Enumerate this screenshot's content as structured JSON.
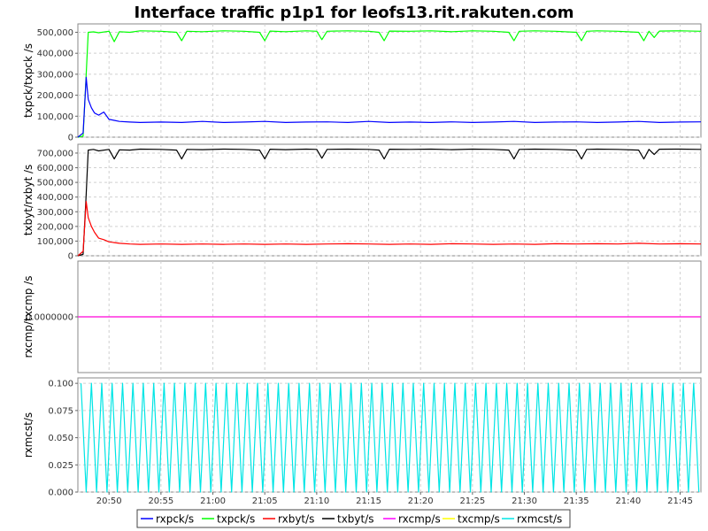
{
  "chart_data": {
    "type": "line",
    "title": "Interface traffic p1p1 for leofs13.rit.rakuten.com",
    "x_unit": "minutes since 20:47",
    "x_range": [
      0,
      60
    ],
    "x_ticks": [
      {
        "value": 3,
        "label": "20:50"
      },
      {
        "value": 8,
        "label": "20:55"
      },
      {
        "value": 13,
        "label": "21:00"
      },
      {
        "value": 18,
        "label": "21:05"
      },
      {
        "value": 23,
        "label": "21:10"
      },
      {
        "value": 28,
        "label": "21:15"
      },
      {
        "value": 33,
        "label": "21:20"
      },
      {
        "value": 38,
        "label": "21:25"
      },
      {
        "value": 43,
        "label": "21:30"
      },
      {
        "value": 48,
        "label": "21:35"
      },
      {
        "value": 53,
        "label": "21:40"
      },
      {
        "value": 58,
        "label": "21:45"
      }
    ],
    "panels": [
      {
        "ylabel": "txpck/txpck /s",
        "ylim": [
          0,
          540000
        ],
        "y_ticks": [
          {
            "value": 0,
            "label": "0"
          },
          {
            "value": 100000,
            "label": "100,000"
          },
          {
            "value": 200000,
            "label": "200,000"
          },
          {
            "value": 300000,
            "label": "300,000"
          },
          {
            "value": 400000,
            "label": "400,000"
          },
          {
            "value": 500000,
            "label": "500,000"
          }
        ],
        "series": [
          {
            "name": "txpck/s",
            "color": "#00ff00",
            "x": [
              0,
              0.5,
              0.8,
              1.0,
              1.5,
              2,
              3,
              3.5,
              4,
              5,
              6,
              8,
              9.5,
              10,
              10.5,
              12,
              14,
              16,
              17.5,
              18,
              18.5,
              20,
              22,
              23,
              23.5,
              24,
              26,
              28,
              29,
              29.5,
              30,
              32,
              34,
              36,
              38,
              40,
              41.5,
              42,
              42.5,
              44,
              46,
              48,
              48.5,
              49,
              50,
              52,
              54,
              54.5,
              55,
              55.5,
              56,
              58,
              60
            ],
            "values": [
              0,
              5000,
              300000,
              500000,
              502000,
              498000,
              505000,
              455000,
              503000,
              500000,
              507000,
              505000,
              500000,
              460000,
              505000,
              503000,
              507000,
              505000,
              500000,
              460000,
              506000,
              503000,
              507000,
              505000,
              465000,
              505000,
              507000,
              505000,
              500000,
              460000,
              506000,
              505000,
              507000,
              503000,
              507000,
              505000,
              500000,
              460000,
              505000,
              507000,
              505000,
              500000,
              460000,
              505000,
              507000,
              505000,
              500000,
              460000,
              505000,
              475000,
              506000,
              507000,
              505000
            ]
          },
          {
            "name": "rxpck/s",
            "color": "#0000ff",
            "x": [
              0,
              0.5,
              0.8,
              1.0,
              1.3,
              1.6,
              2,
              2.5,
              3,
              3.5,
              4,
              5,
              6,
              8,
              10,
              12,
              14,
              16,
              18,
              20,
              22,
              24,
              26,
              28,
              30,
              32,
              34,
              36,
              38,
              40,
              42,
              44,
              46,
              48,
              50,
              52,
              54,
              56,
              58,
              60
            ],
            "values": [
              0,
              20000,
              285000,
              180000,
              140000,
              115000,
              105000,
              120000,
              85000,
              80000,
              75000,
              72000,
              70000,
              72000,
              70000,
              75000,
              70000,
              72000,
              75000,
              70000,
              72000,
              73000,
              70000,
              75000,
              70000,
              72000,
              70000,
              73000,
              70000,
              72000,
              75000,
              70000,
              72000,
              73000,
              70000,
              72000,
              75000,
              70000,
              72000,
              73000
            ]
          }
        ]
      },
      {
        "ylabel": "txbyt/rxbyt /s",
        "ylim": [
          0,
          760000
        ],
        "y_ticks": [
          {
            "value": 0,
            "label": "0"
          },
          {
            "value": 100000,
            "label": "100,000"
          },
          {
            "value": 200000,
            "label": "200,000"
          },
          {
            "value": 300000,
            "label": "300,000"
          },
          {
            "value": 400000,
            "label": "400,000"
          },
          {
            "value": 500000,
            "label": "500,000"
          },
          {
            "value": 600000,
            "label": "600,000"
          },
          {
            "value": 700000,
            "label": "700,000"
          }
        ],
        "series": [
          {
            "name": "txbyt/s",
            "color": "#000000",
            "x": [
              0,
              0.5,
              0.8,
              1.0,
              1.5,
              2,
              3,
              3.5,
              4,
              5,
              6,
              8,
              9.5,
              10,
              10.5,
              12,
              14,
              16,
              17.5,
              18,
              18.5,
              20,
              22,
              23,
              23.5,
              24,
              26,
              28,
              29,
              29.5,
              30,
              32,
              34,
              36,
              38,
              40,
              41.5,
              42,
              42.5,
              44,
              46,
              48,
              48.5,
              49,
              50,
              52,
              54,
              54.5,
              55,
              55.5,
              56,
              58,
              60
            ],
            "values": [
              0,
              10000,
              420000,
              720000,
              725000,
              715000,
              725000,
              660000,
              722000,
              720000,
              727000,
              725000,
              720000,
              660000,
              725000,
              723000,
              727000,
              725000,
              720000,
              660000,
              726000,
              723000,
              727000,
              725000,
              665000,
              725000,
              727000,
              725000,
              720000,
              660000,
              726000,
              725000,
              727000,
              723000,
              727000,
              725000,
              720000,
              660000,
              725000,
              727000,
              725000,
              720000,
              660000,
              725000,
              727000,
              725000,
              720000,
              660000,
              725000,
              690000,
              726000,
              727000,
              725000
            ]
          },
          {
            "name": "rxbyt/s",
            "color": "#ff0000",
            "x": [
              0,
              0.5,
              0.8,
              1.0,
              1.3,
              1.6,
              2,
              2.5,
              3,
              3.5,
              4,
              5,
              6,
              8,
              10,
              12,
              14,
              16,
              18,
              20,
              22,
              24,
              26,
              28,
              30,
              32,
              34,
              36,
              38,
              40,
              42,
              44,
              46,
              48,
              50,
              52,
              54,
              56,
              58,
              60
            ],
            "values": [
              0,
              30000,
              370000,
              260000,
              200000,
              160000,
              120000,
              110000,
              95000,
              90000,
              85000,
              80000,
              78000,
              80000,
              78000,
              80000,
              78000,
              80000,
              78000,
              80000,
              78000,
              80000,
              82000,
              80000,
              78000,
              80000,
              78000,
              82000,
              80000,
              78000,
              80000,
              78000,
              82000,
              80000,
              82000,
              80000,
              85000,
              80000,
              82000,
              80000
            ]
          }
        ]
      },
      {
        "ylabel": "rxcmp/txcmp /s",
        "ylim": [
          -1,
          1
        ],
        "y_ticks": [
          {
            "value": 0,
            "label": "0.0000000"
          }
        ],
        "series": [
          {
            "name": "txcmp/s",
            "color": "#ffff00",
            "x": [
              0,
              60
            ],
            "values": [
              0,
              0
            ]
          },
          {
            "name": "rxcmp/s",
            "color": "#ff00ff",
            "x": [
              0,
              60
            ],
            "values": [
              0,
              0
            ]
          }
        ]
      },
      {
        "ylabel": "rxmcst/s",
        "ylim": [
          0,
          0.105
        ],
        "y_ticks": [
          {
            "value": 0,
            "label": "0.000"
          },
          {
            "value": 0.025,
            "label": "0.025"
          },
          {
            "value": 0.05,
            "label": "0.050"
          },
          {
            "value": 0.075,
            "label": "0.075"
          },
          {
            "value": 0.1,
            "label": "0.100"
          }
        ],
        "series": [
          {
            "name": "rxmcst/s",
            "color": "#00e5e5",
            "pattern": "alternating",
            "low": 0,
            "high": 0.1,
            "x_start": 0.3,
            "x_end": 60,
            "x_step": 0.5
          }
        ]
      }
    ],
    "legend": {
      "placement": "bottom-center",
      "entries": [
        {
          "label": "rxpck/s",
          "color": "#0000ff"
        },
        {
          "label": "txpck/s",
          "color": "#00ff00"
        },
        {
          "label": "rxbyt/s",
          "color": "#ff0000"
        },
        {
          "label": "txbyt/s",
          "color": "#000000"
        },
        {
          "label": "rxcmp/s",
          "color": "#ff00ff"
        },
        {
          "label": "txcmp/s",
          "color": "#ffff00"
        },
        {
          "label": "rxmcst/s",
          "color": "#00e5e5"
        }
      ]
    }
  }
}
